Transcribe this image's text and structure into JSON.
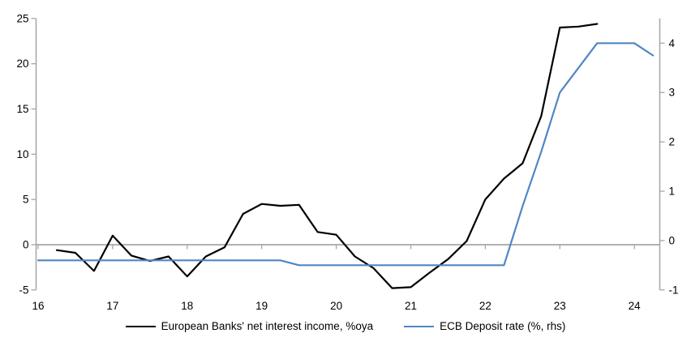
{
  "chart_data": {
    "type": "line",
    "title": "",
    "xlabel": "",
    "ylabel_left": "",
    "ylabel_right": "",
    "grid": "zero-line-only",
    "legend_position": "bottom-center",
    "x_axis": {
      "tick_labels": [
        "16",
        "17",
        "18",
        "19",
        "20",
        "21",
        "22",
        "23",
        "24"
      ],
      "tick_values": [
        16,
        17,
        18,
        19,
        20,
        21,
        22,
        23,
        24
      ],
      "min": 16,
      "max": 24.35
    },
    "left_axis": {
      "tick_labels": [
        "25",
        "20",
        "15",
        "10",
        "5",
        "0",
        "-5"
      ],
      "tick_values": [
        25,
        20,
        15,
        10,
        5,
        0,
        -5
      ],
      "min": -5,
      "max": 25
    },
    "right_axis": {
      "tick_labels": [
        "4",
        "3",
        "2",
        "1",
        "0",
        "-1"
      ],
      "tick_values": [
        4,
        3,
        2,
        1,
        0,
        -1
      ],
      "min": -1,
      "max": 4.5
    },
    "series": [
      {
        "name": "European Banks' net interest income, %oya",
        "axis": "left",
        "color": "#000000",
        "x": [
          16.25,
          16.5,
          16.75,
          17.0,
          17.25,
          17.5,
          17.75,
          18.0,
          18.25,
          18.5,
          18.75,
          19.0,
          19.25,
          19.5,
          19.75,
          20.0,
          20.25,
          20.5,
          20.75,
          21.0,
          21.25,
          21.5,
          21.75,
          22.0,
          22.25,
          22.5,
          22.75,
          23.0,
          23.25,
          23.5
        ],
        "values": [
          -0.6,
          -0.9,
          -2.9,
          1.0,
          -1.2,
          -1.8,
          -1.3,
          -3.5,
          -1.3,
          -0.3,
          3.4,
          4.5,
          4.3,
          4.4,
          1.4,
          1.1,
          -1.3,
          -2.6,
          -4.8,
          -4.7,
          -3.1,
          -1.6,
          0.4,
          5.0,
          7.3,
          9.0,
          14.2,
          24.0,
          24.1,
          24.4
        ]
      },
      {
        "name": "ECB Deposit rate (%, rhs)",
        "axis": "right",
        "color": "#4f86c5",
        "x": [
          16.0,
          16.25,
          16.5,
          16.75,
          17.0,
          17.25,
          17.5,
          17.75,
          18.0,
          18.25,
          18.5,
          18.75,
          19.0,
          19.25,
          19.5,
          19.75,
          20.0,
          20.25,
          20.5,
          20.75,
          21.0,
          21.25,
          21.5,
          21.75,
          22.0,
          22.25,
          22.5,
          22.75,
          23.0,
          23.25,
          23.5,
          23.75,
          24.0,
          24.25
        ],
        "values": [
          -0.4,
          -0.4,
          -0.4,
          -0.4,
          -0.4,
          -0.4,
          -0.4,
          -0.4,
          -0.4,
          -0.4,
          -0.4,
          -0.4,
          -0.4,
          -0.4,
          -0.5,
          -0.5,
          -0.5,
          -0.5,
          -0.5,
          -0.5,
          -0.5,
          -0.5,
          -0.5,
          -0.5,
          -0.5,
          -0.5,
          0.7,
          1.8,
          3.0,
          3.5,
          4.0,
          4.0,
          4.0,
          3.75
        ]
      }
    ]
  },
  "colors": {
    "axis_line": "#a6a6a6",
    "zero_line": "#a6a6a6",
    "background": "#ffffff",
    "text": "#000000"
  },
  "legend": {
    "items": [
      {
        "label": "European Banks' net interest income, %oya",
        "series_index": 0
      },
      {
        "label": "ECB Deposit rate (%, rhs)",
        "series_index": 1
      }
    ]
  }
}
